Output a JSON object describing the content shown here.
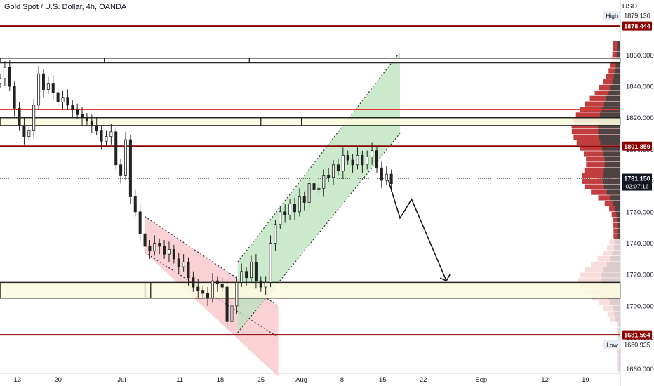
{
  "header": {
    "title": "Gold Spot / U.S. Dollar, 4h, OANDA",
    "currency": "USD"
  },
  "chart_data": {
    "type": "candlestick",
    "y_axis": {
      "ticks": [
        "1860.000",
        "1840.000",
        "1820.000",
        "1800.000",
        "1780.000",
        "1760.000",
        "1740.000",
        "1720.000",
        "1700.000",
        "1680.000",
        "1660.000"
      ],
      "tick_values": [
        1860,
        1840,
        1820,
        1800,
        1780,
        1760,
        1740,
        1720,
        1700,
        1680,
        1660
      ],
      "range": [
        1657,
        1887
      ]
    },
    "x_axis": {
      "labels": [
        "13",
        "20",
        "Jul",
        "11",
        "18",
        "25",
        "Aug",
        "8",
        "15",
        "22",
        "Sep",
        "12",
        "19"
      ],
      "dates": [
        "2021-06-13",
        "2021-06-20",
        "2021-07-01",
        "2021-07-11",
        "2021-07-18",
        "2021-07-25",
        "2021-08-01",
        "2021-08-08",
        "2021-08-15",
        "2021-08-22",
        "2021-09-01",
        "2021-09-12",
        "2021-09-19"
      ]
    },
    "price_labels": {
      "high": {
        "label": "High",
        "value": "1879.130"
      },
      "resistance_top": "1878.444",
      "resistance_mid": "1801.859",
      "current": {
        "value": "1781.150",
        "countdown": "02:07:16"
      },
      "support_bottom": "1681.564",
      "low": {
        "label": "Low",
        "value": "1680.935"
      }
    },
    "horizontal_levels": [
      1878.444,
      1825.0,
      1801.859,
      1681.564
    ],
    "zones": [
      {
        "name": "zone-upper",
        "from": 1855,
        "to": 1858
      },
      {
        "name": "zone-middle",
        "from": 1815,
        "to": 1820
      },
      {
        "name": "zone-lower",
        "from": 1705,
        "to": 1715
      }
    ],
    "channels": {
      "descending": {
        "start": "2021-07-05",
        "end": "2021-07-28",
        "color": "#f4a7b0"
      },
      "ascending": {
        "start": "2021-07-21",
        "end": "2021-08-18",
        "color": "#a5d6a7"
      }
    },
    "projection_path": [
      [
        "2021-08-16",
        1780
      ],
      [
        "2021-08-18",
        1756
      ],
      [
        "2021-08-20",
        1768
      ],
      [
        "2021-08-26",
        1716
      ]
    ],
    "candles_close": [
      1845,
      1852,
      1840,
      1826,
      1815,
      1808,
      1812,
      1828,
      1848,
      1838,
      1842,
      1836,
      1830,
      1833,
      1828,
      1825,
      1822,
      1820,
      1818,
      1815,
      1812,
      1805,
      1808,
      1811,
      1790,
      1783,
      1806,
      1770,
      1760,
      1746,
      1738,
      1735,
      1740,
      1738,
      1733,
      1736,
      1730,
      1725,
      1728,
      1718,
      1712,
      1710,
      1708,
      1705,
      1716,
      1714,
      1712,
      1690,
      1700,
      1715,
      1722,
      1718,
      1728,
      1716,
      1712,
      1715,
      1740,
      1752,
      1760,
      1758,
      1765,
      1760,
      1770,
      1766,
      1778,
      1774,
      1775,
      1783,
      1782,
      1790,
      1786,
      1796,
      1793,
      1790,
      1796,
      1790,
      1795,
      1799,
      1788,
      1780,
      1784,
      1778
    ],
    "volume_profile_rows": 60
  }
}
